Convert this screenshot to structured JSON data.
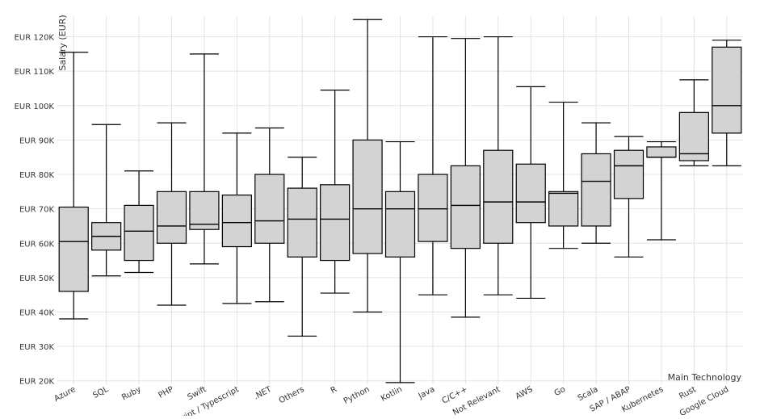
{
  "chart_data": {
    "type": "box",
    "ylabel": "Salary (EUR)",
    "xlabel": "Main Technology",
    "ylim": [
      19000,
      126000
    ],
    "yticks": [
      20000,
      30000,
      40000,
      50000,
      60000,
      70000,
      80000,
      90000,
      100000,
      110000,
      120000
    ],
    "ytick_labels": [
      "EUR 20K",
      "EUR 30K",
      "EUR 40K",
      "EUR 50K",
      "EUR 60K",
      "EUR 70K",
      "EUR 80K",
      "EUR 90K",
      "EUR 100K",
      "EUR 110K",
      "EUR 120K"
    ],
    "grid": true,
    "box_fill": "#d3d3d3",
    "box_stroke": "#000000",
    "categories": [
      "Azure",
      "SQL",
      "Ruby",
      "PHP",
      "Swift",
      "JavaScript / Typescript",
      ".NET",
      "Others",
      "R",
      "Python",
      "Kotlin",
      "Java",
      "C/C++",
      "Not Relevant",
      "AWS",
      "Go",
      "Scala",
      "SAP / ABAP",
      "Kubernetes",
      "Rust",
      "Google Cloud"
    ],
    "boxes": [
      {
        "min": 38000,
        "q1": 46000,
        "median": 60500,
        "q3": 70500,
        "max": 115500
      },
      {
        "min": 50500,
        "q1": 58000,
        "median": 62000,
        "q3": 66000,
        "max": 94500
      },
      {
        "min": 51500,
        "q1": 55000,
        "median": 63500,
        "q3": 71000,
        "max": 81000
      },
      {
        "min": 42000,
        "q1": 60000,
        "median": 65000,
        "q3": 75000,
        "max": 95000
      },
      {
        "min": 54000,
        "q1": 64000,
        "median": 65500,
        "q3": 75000,
        "max": 115000
      },
      {
        "min": 42500,
        "q1": 59000,
        "median": 66000,
        "q3": 74000,
        "max": 92000
      },
      {
        "min": 43000,
        "q1": 60000,
        "median": 66500,
        "q3": 80000,
        "max": 93500
      },
      {
        "min": 33000,
        "q1": 56000,
        "median": 67000,
        "q3": 76000,
        "max": 85000
      },
      {
        "min": 45500,
        "q1": 55000,
        "median": 67000,
        "q3": 77000,
        "max": 104500
      },
      {
        "min": 40000,
        "q1": 57000,
        "median": 70000,
        "q3": 90000,
        "max": 125000
      },
      {
        "min": 19500,
        "q1": 56000,
        "median": 70000,
        "q3": 75000,
        "max": 89500
      },
      {
        "min": 45000,
        "q1": 60500,
        "median": 70000,
        "q3": 80000,
        "max": 120000
      },
      {
        "min": 38500,
        "q1": 58500,
        "median": 71000,
        "q3": 82500,
        "max": 119500
      },
      {
        "min": 45000,
        "q1": 60000,
        "median": 72000,
        "q3": 87000,
        "max": 120000
      },
      {
        "min": 44000,
        "q1": 66000,
        "median": 72000,
        "q3": 83000,
        "max": 105500
      },
      {
        "min": 58500,
        "q1": 65000,
        "median": 74500,
        "q3": 75000,
        "max": 101000
      },
      {
        "min": 60000,
        "q1": 65000,
        "median": 78000,
        "q3": 86000,
        "max": 95000
      },
      {
        "min": 56000,
        "q1": 73000,
        "median": 82500,
        "q3": 87000,
        "max": 91000
      },
      {
        "min": 61000,
        "q1": 85000,
        "median": 85000,
        "q3": 88000,
        "max": 89500
      },
      {
        "min": 82500,
        "q1": 84000,
        "median": 86000,
        "q3": 98000,
        "max": 107500
      },
      {
        "min": 82500,
        "q1": 92000,
        "median": 100000,
        "q3": 117000,
        "max": 119000
      }
    ]
  }
}
